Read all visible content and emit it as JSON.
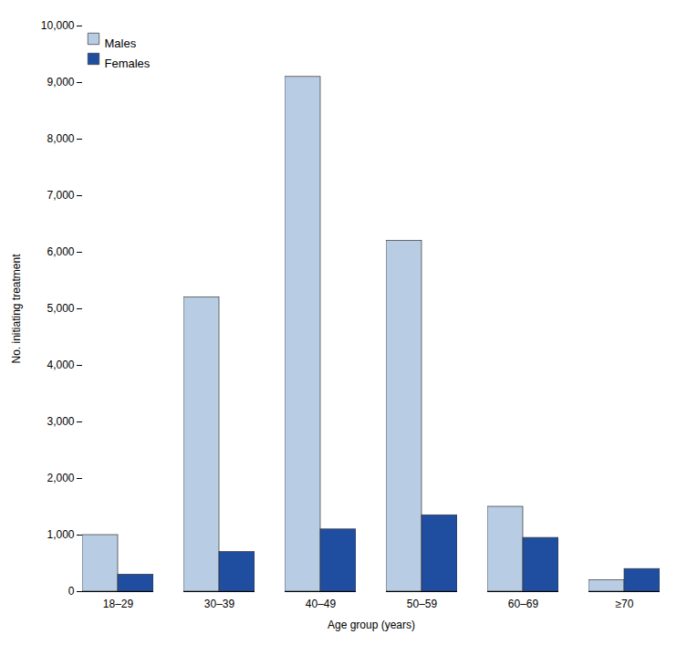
{
  "chart_data": {
    "type": "bar",
    "xlabel": "Age group (years)",
    "ylabel": "No. initiating treatment",
    "categories": [
      "18–29",
      "30–39",
      "40–49",
      "50–59",
      "60–69",
      "≥70"
    ],
    "series": [
      {
        "name": "Males",
        "color": "#b8cce4",
        "values": [
          1000,
          5200,
          9100,
          6200,
          1500,
          200
        ]
      },
      {
        "name": "Females",
        "color": "#1f4ea1",
        "values": [
          300,
          700,
          1100,
          1350,
          950,
          400
        ]
      }
    ],
    "ylim": [
      0,
      10000
    ],
    "yticks": [
      0,
      {
        "value": 1000,
        "label": "1,000"
      },
      {
        "value": 2000,
        "label": "2,000"
      },
      {
        "value": 3000,
        "label": "3,000"
      },
      {
        "value": 4000,
        "label": "4,000"
      },
      {
        "value": 5000,
        "label": "5,000"
      },
      {
        "value": 6000,
        "label": "6,000"
      },
      {
        "value": 7000,
        "label": "7,000"
      },
      {
        "value": 8000,
        "label": "8,000"
      },
      {
        "value": 9000,
        "label": "9,000"
      },
      {
        "value": 10000,
        "label": "10,000"
      }
    ],
    "grid": false,
    "legend": "upper left"
  }
}
